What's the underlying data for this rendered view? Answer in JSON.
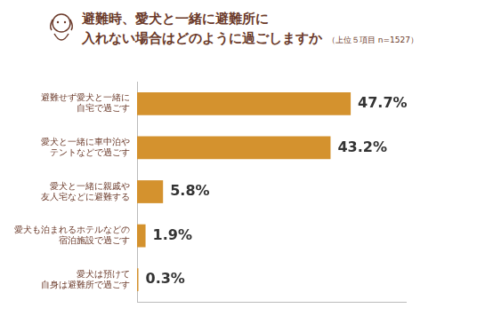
{
  "chart_data": {
    "type": "bar",
    "orientation": "horizontal",
    "title": "避難時、愛犬と一緒に避難所に\n入れない場合はどのように過ごしますか",
    "subtitle": "（上位５項目 n=1527）",
    "categories": [
      "避難せず愛犬と一緒に\n自宅で過ごす",
      "愛犬と一緒に車中泊や\nテントなどで過ごす",
      "愛犬と一緒に親戚や\n友人宅などに避難する",
      "愛犬も泊まれるホテルなどの\n宿泊施設で過ごす",
      "愛犬は預けて\n自身は避難所で過ごす"
    ],
    "values": [
      47.7,
      43.2,
      5.8,
      1.9,
      0.3
    ],
    "value_labels": [
      "47.7%",
      "43.2%",
      "5.8%",
      "1.9%",
      "0.3%"
    ],
    "data_labels": true,
    "color": "#d4922e",
    "xlim": [
      0,
      60
    ],
    "tick_labels": "y",
    "grid": false
  }
}
